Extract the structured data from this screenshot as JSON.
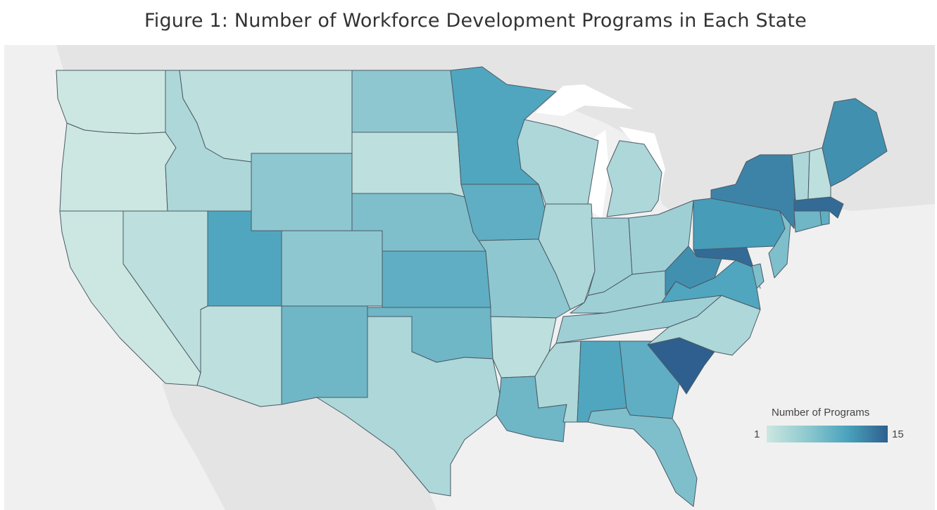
{
  "title": "Figure 1: Number of Workforce Development Programs in Each State",
  "legend": {
    "title": "Number of Programs",
    "min_label": "1",
    "max_label": "15"
  },
  "colors": {
    "background": "#f0f0f0",
    "land_other": "#e4e4e4",
    "lakes": "#ffffff",
    "scale_low": "#cce7e1",
    "scale_high": "#2e5f8e",
    "border": "#4a5a66"
  },
  "map_data": {
    "type": "choropleth",
    "region": "United States (contiguous)",
    "scale": {
      "min": 1,
      "max": 15
    },
    "states": [
      {
        "name": "Washington",
        "value": 1
      },
      {
        "name": "Oregon",
        "value": 1
      },
      {
        "name": "California",
        "value": 1
      },
      {
        "name": "Nevada",
        "value": 2
      },
      {
        "name": "Idaho",
        "value": 3
      },
      {
        "name": "Montana",
        "value": 2
      },
      {
        "name": "Wyoming",
        "value": 5
      },
      {
        "name": "Utah",
        "value": 9
      },
      {
        "name": "Arizona",
        "value": 2
      },
      {
        "name": "Colorado",
        "value": 5
      },
      {
        "name": "New Mexico",
        "value": 7
      },
      {
        "name": "North Dakota",
        "value": 5
      },
      {
        "name": "South Dakota",
        "value": 2
      },
      {
        "name": "Nebraska",
        "value": 6
      },
      {
        "name": "Kansas",
        "value": 8
      },
      {
        "name": "Oklahoma",
        "value": 7
      },
      {
        "name": "Texas",
        "value": 3
      },
      {
        "name": "Minnesota",
        "value": 9
      },
      {
        "name": "Iowa",
        "value": 8
      },
      {
        "name": "Missouri",
        "value": 5
      },
      {
        "name": "Arkansas",
        "value": 2
      },
      {
        "name": "Louisiana",
        "value": 7
      },
      {
        "name": "Wisconsin",
        "value": 3
      },
      {
        "name": "Illinois",
        "value": 3
      },
      {
        "name": "Michigan",
        "value": 3
      },
      {
        "name": "Indiana",
        "value": 4
      },
      {
        "name": "Ohio",
        "value": 4
      },
      {
        "name": "Kentucky",
        "value": 4
      },
      {
        "name": "Tennessee",
        "value": 4
      },
      {
        "name": "Mississippi",
        "value": 3
      },
      {
        "name": "Alabama",
        "value": 9
      },
      {
        "name": "Georgia",
        "value": 8
      },
      {
        "name": "Florida",
        "value": 6
      },
      {
        "name": "South Carolina",
        "value": 15
      },
      {
        "name": "North Carolina",
        "value": 3
      },
      {
        "name": "Virginia",
        "value": 9
      },
      {
        "name": "West Virginia",
        "value": 11
      },
      {
        "name": "Maryland",
        "value": 14
      },
      {
        "name": "Delaware",
        "value": 6
      },
      {
        "name": "Pennsylvania",
        "value": 10
      },
      {
        "name": "New Jersey",
        "value": 6
      },
      {
        "name": "New York",
        "value": 12
      },
      {
        "name": "Connecticut",
        "value": 7
      },
      {
        "name": "Rhode Island",
        "value": 8
      },
      {
        "name": "Massachusetts",
        "value": 14
      },
      {
        "name": "Vermont",
        "value": 3
      },
      {
        "name": "New Hampshire",
        "value": 2
      },
      {
        "name": "Maine",
        "value": 11
      }
    ]
  }
}
